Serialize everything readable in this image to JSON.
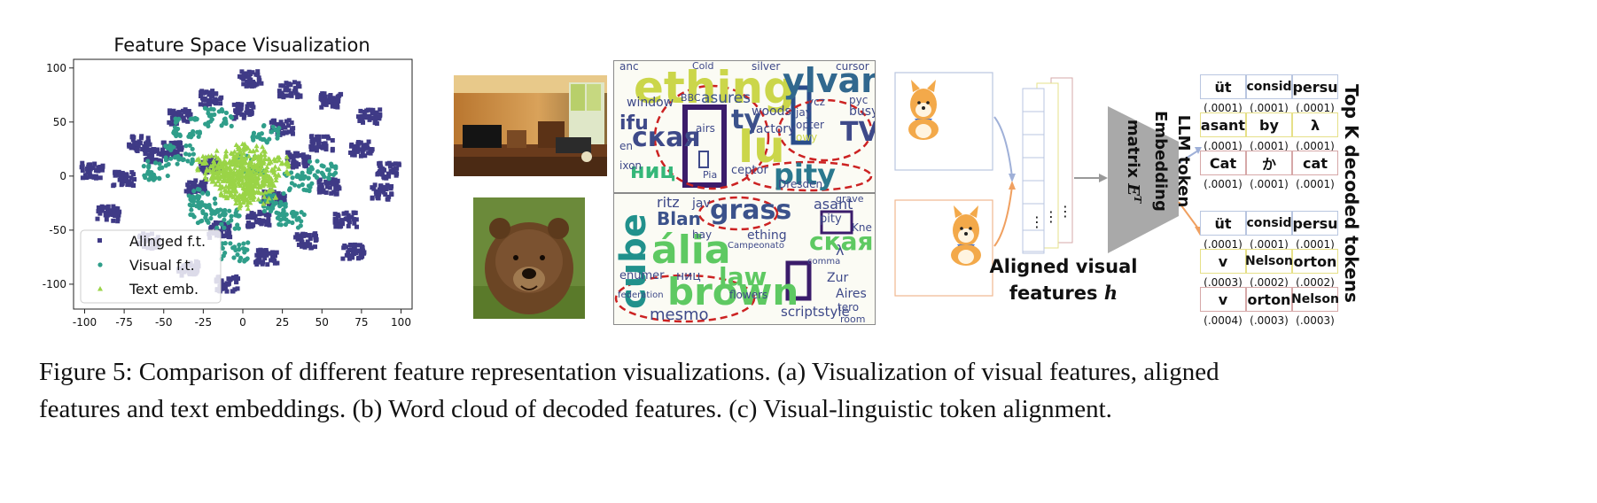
{
  "panel_a": {
    "chart_data": {
      "type": "scatter",
      "title": "Feature Space Visualization",
      "xlabel": "",
      "ylabel": "",
      "xlim": [
        -107,
        107
      ],
      "ylim": [
        -123,
        108
      ],
      "xticks": [
        "-100",
        "-75",
        "-50",
        "-25",
        "0",
        "25",
        "50",
        "75",
        "100"
      ],
      "yticks": [
        "100",
        "50",
        "0",
        "-50",
        "-100"
      ],
      "grid": false,
      "legend_position": "lower-left",
      "series": [
        {
          "name": "Alinged f.t.",
          "marker": "square",
          "color": "#3f3a86",
          "clusters": [
            [
              -75,
              -3
            ],
            [
              -55,
              18
            ],
            [
              -40,
              55
            ],
            [
              -20,
              72
            ],
            [
              5,
              90
            ],
            [
              30,
              80
            ],
            [
              55,
              70
            ],
            [
              80,
              55
            ],
            [
              -85,
              -35
            ],
            [
              -60,
              -60
            ],
            [
              -35,
              -85
            ],
            [
              -10,
              -100
            ],
            [
              15,
              -75
            ],
            [
              40,
              -60
            ],
            [
              65,
              -40
            ],
            [
              88,
              -15
            ],
            [
              92,
              5
            ],
            [
              70,
              -70
            ],
            [
              -95,
              5
            ],
            [
              -20,
              10
            ],
            [
              35,
              15
            ],
            [
              55,
              -10
            ],
            [
              -45,
              25
            ],
            [
              10,
              -40
            ],
            [
              -15,
              -50
            ],
            [
              25,
              45
            ],
            [
              50,
              30
            ],
            [
              75,
              25
            ],
            [
              -65,
              30
            ],
            [
              0,
              60
            ],
            [
              -30,
              -10
            ],
            [
              20,
              -20
            ]
          ]
        },
        {
          "name": "Visual f.t.",
          "marker": "circle",
          "color": "#2f9e8a",
          "clusters": [
            [
              -35,
              45
            ],
            [
              -40,
              20
            ],
            [
              -15,
              55
            ],
            [
              -10,
              -40
            ],
            [
              -25,
              -35
            ],
            [
              5,
              10
            ],
            [
              20,
              -25
            ],
            [
              35,
              -5
            ],
            [
              30,
              -40
            ],
            [
              50,
              5
            ],
            [
              -25,
              -20
            ],
            [
              -55,
              5
            ],
            [
              15,
              40
            ],
            [
              -5,
              -70
            ]
          ]
        },
        {
          "name": "Text emb.",
          "marker": "triangle",
          "color": "#9ad447",
          "clusters": [
            [
              0,
              0
            ],
            [
              -8,
              5
            ],
            [
              8,
              -5
            ],
            [
              5,
              12
            ],
            [
              -5,
              -10
            ],
            [
              12,
              3
            ],
            [
              -12,
              -3
            ],
            [
              3,
              20
            ],
            [
              -3,
              -20
            ],
            [
              18,
              10
            ],
            [
              -18,
              8
            ],
            [
              10,
              -15
            ],
            [
              -10,
              15
            ]
          ]
        }
      ]
    }
  },
  "panel_b": {
    "wordcloud_top": {
      "words": [
        {
          "t": "ething",
          "x": 22,
          "y": 5,
          "s": 50,
          "c": "#cbd64a"
        },
        {
          "t": "ylvan",
          "x": 190,
          "y": 3,
          "s": 38,
          "c": "#31688e"
        },
        {
          "t": "ская",
          "x": 20,
          "y": 72,
          "s": 30,
          "c": "#3e4a89"
        },
        {
          "t": "ниц",
          "x": 18,
          "y": 112,
          "s": 24,
          "c": "#35b779"
        },
        {
          "t": "ty",
          "x": 132,
          "y": 52,
          "s": 30,
          "c": "#3b528b"
        },
        {
          "t": "pity",
          "x": 180,
          "y": 112,
          "s": 32,
          "c": "#2a788e"
        },
        {
          "t": "TV",
          "x": 255,
          "y": 66,
          "s": 30,
          "c": "#3e4989"
        },
        {
          "t": "asures",
          "x": 98,
          "y": 34,
          "s": 17,
          "c": "#3b528b"
        },
        {
          "t": "window",
          "x": 14,
          "y": 40,
          "s": 14,
          "c": "#3e4989"
        },
        {
          "t": "factory",
          "x": 155,
          "y": 70,
          "s": 14,
          "c": "#3e4989"
        },
        {
          "t": "woods",
          "x": 155,
          "y": 50,
          "s": 14,
          "c": "#3e4989"
        },
        {
          "t": "busy",
          "x": 265,
          "y": 50,
          "s": 14,
          "c": "#3e4989"
        },
        {
          "t": "silver",
          "x": 155,
          "y": 0,
          "s": 12,
          "c": "#3e4989"
        },
        {
          "t": "Cold",
          "x": 88,
          "y": 0,
          "s": 11,
          "c": "#3e4989"
        },
        {
          "t": "cursor",
          "x": 250,
          "y": 0,
          "s": 12,
          "c": "#3e4989"
        },
        {
          "t": "anc",
          "x": 6,
          "y": 0,
          "s": 12,
          "c": "#3e4989"
        },
        {
          "t": "ifu",
          "x": 6,
          "y": 60,
          "s": 22,
          "c": "#3e4989"
        },
        {
          "t": "ixon",
          "x": 6,
          "y": 112,
          "s": 12,
          "c": "#3e4989"
        },
        {
          "t": "ceptor",
          "x": 132,
          "y": 117,
          "s": 13,
          "c": "#3e4989"
        },
        {
          "t": "Dresden",
          "x": 185,
          "y": 133,
          "s": 12,
          "c": "#3e4989"
        },
        {
          "t": "opter",
          "x": 205,
          "y": 66,
          "s": 12,
          "c": "#3e4989"
        },
        {
          "t": "jay",
          "x": 205,
          "y": 52,
          "s": 12,
          "c": "#3e4989"
        },
        {
          "t": "ycz",
          "x": 218,
          "y": 40,
          "s": 12,
          "c": "#3e4989"
        },
        {
          "t": "pyc",
          "x": 265,
          "y": 38,
          "s": 12,
          "c": "#3e4989"
        },
        {
          "t": "owy",
          "x": 205,
          "y": 80,
          "s": 12,
          "c": "#cbd64a"
        },
        {
          "t": "airs",
          "x": 92,
          "y": 70,
          "s": 12,
          "c": "#3e4989"
        },
        {
          "t": "lu",
          "x": 140,
          "y": 72,
          "s": 50,
          "c": "#cbd64a"
        },
        {
          "t": "en",
          "x": 6,
          "y": 90,
          "s": 12,
          "c": "#3e4989"
        },
        {
          "t": "Pia",
          "x": 100,
          "y": 123,
          "s": 11,
          "c": "#3e4989"
        },
        {
          "t": "BBC",
          "x": 75,
          "y": 36,
          "s": 11,
          "c": "#3e4989"
        }
      ]
    },
    "wordcloud_bottom": {
      "words": [
        {
          "t": "cube",
          "x": 2,
          "y": 40,
          "s": 40,
          "c": "#21918c",
          "vertical": true
        },
        {
          "t": "ália",
          "x": 42,
          "y": 42,
          "s": 44,
          "c": "#5ec962"
        },
        {
          "t": "grass",
          "x": 108,
          "y": 4,
          "s": 30,
          "c": "#3b528b"
        },
        {
          "t": "brown",
          "x": 60,
          "y": 90,
          "s": 42,
          "c": "#5ec962"
        },
        {
          "t": "law",
          "x": 118,
          "y": 80,
          "s": 28,
          "c": "#5ec962"
        },
        {
          "t": "ская",
          "x": 220,
          "y": 40,
          "s": 28,
          "c": "#5ec962"
        },
        {
          "t": "Blan",
          "x": 48,
          "y": 18,
          "s": 20,
          "c": "#3b528b"
        },
        {
          "t": "ritz",
          "x": 48,
          "y": 2,
          "s": 16,
          "c": "#3e4989"
        },
        {
          "t": "jav",
          "x": 88,
          "y": 4,
          "s": 14,
          "c": "#3e4989"
        },
        {
          "t": "asant",
          "x": 225,
          "y": 4,
          "s": 16,
          "c": "#3e4989"
        },
        {
          "t": "ething",
          "x": 150,
          "y": 40,
          "s": 14,
          "c": "#3e4989"
        },
        {
          "t": "enumer",
          "x": 6,
          "y": 86,
          "s": 13,
          "c": "#3e4989"
        },
        {
          "t": "mesmo",
          "x": 40,
          "y": 128,
          "s": 18,
          "c": "#3e4989"
        },
        {
          "t": "scriptstyle",
          "x": 188,
          "y": 126,
          "s": 15,
          "c": "#3e4989"
        },
        {
          "t": "Aires",
          "x": 250,
          "y": 106,
          "s": 14,
          "c": "#3e4989"
        },
        {
          "t": "Zur",
          "x": 240,
          "y": 88,
          "s": 14,
          "c": "#3e4989"
        },
        {
          "t": "pity",
          "x": 232,
          "y": 22,
          "s": 13,
          "c": "#3e4989"
        },
        {
          "t": "Kne",
          "x": 268,
          "y": 32,
          "s": 12,
          "c": "#3e4989"
        },
        {
          "t": "λ",
          "x": 250,
          "y": 56,
          "s": 16,
          "c": "#3e4989"
        },
        {
          "t": "hay",
          "x": 88,
          "y": 40,
          "s": 12,
          "c": "#3e4989"
        },
        {
          "t": "flowers",
          "x": 130,
          "y": 108,
          "s": 12,
          "c": "#3e4989"
        },
        {
          "t": "tero",
          "x": 252,
          "y": 122,
          "s": 12,
          "c": "#3e4989"
        },
        {
          "t": "ниц",
          "x": 70,
          "y": 86,
          "s": 14,
          "c": "#3e4989"
        },
        {
          "t": "grave",
          "x": 250,
          "y": 0,
          "s": 11,
          "c": "#3e4989"
        },
        {
          "t": "room",
          "x": 255,
          "y": 136,
          "s": 11,
          "c": "#3e4989"
        },
        {
          "t": "Campeonato",
          "x": 128,
          "y": 54,
          "s": 10,
          "c": "#3e4989"
        },
        {
          "t": "comma",
          "x": 218,
          "y": 72,
          "s": 10,
          "c": "#3e4989"
        },
        {
          "t": "federation",
          "x": 4,
          "y": 110,
          "s": 10,
          "c": "#3e4989"
        }
      ]
    }
  },
  "panel_c": {
    "aligned_label_1": "Aligned visual",
    "aligned_label_2": "features",
    "aligned_label_var": "h",
    "matrix_label_1": "LLM token",
    "matrix_label_2": "Embedding",
    "matrix_label_3": "matrix",
    "matrix_label_var": "E",
    "matrix_label_sup": "T",
    "topk_label": "Top K decoded tokens",
    "vdots": "⋮",
    "groups": [
      {
        "rows": [
          {
            "color": "#b9c6e0",
            "tokens": [
              "üt",
              "consid",
              "persu"
            ],
            "probs": [
              "(.0001)",
              "(.0001)",
              "(.0001)"
            ]
          },
          {
            "color": "#e6e088",
            "tokens": [
              "asant",
              "by",
              "λ"
            ],
            "probs": [
              "(.0001)",
              "(.0001)",
              "(.0001)"
            ]
          },
          {
            "color": "#d6a8a8",
            "tokens": [
              "Cat",
              "か",
              "cat"
            ],
            "probs": [
              "(.0001)",
              "(.0001)",
              "(.0001)"
            ]
          }
        ]
      },
      {
        "rows": [
          {
            "color": "#b9c6e0",
            "tokens": [
              "üt",
              "consid",
              "persu"
            ],
            "probs": [
              "(.0001)",
              "(.0001)",
              "(.0001)"
            ]
          },
          {
            "color": "#e6e088",
            "tokens": [
              "v",
              "Nelson",
              "orton"
            ],
            "probs": [
              "(.0003)",
              "(.0002)",
              "(.0002)"
            ]
          },
          {
            "color": "#d6a8a8",
            "tokens": [
              "v",
              "orton",
              "Nelson"
            ],
            "probs": [
              "(.0004)",
              "(.0003)",
              "(.0003)"
            ]
          }
        ]
      }
    ]
  },
  "caption": {
    "line1": "Figure 5: Comparison of different feature representation visualizations. (a) Visualization of visual features, aligned",
    "line2": "features and text embeddings. (b) Word cloud of decoded features. (c) Visual-linguistic token alignment."
  },
  "colors": {
    "aligned": "#3f3a86",
    "visual": "#2f9e8a",
    "text": "#9ad447",
    "red_dash": "#cc2222",
    "matrix_gray": "#a9a9a9"
  }
}
